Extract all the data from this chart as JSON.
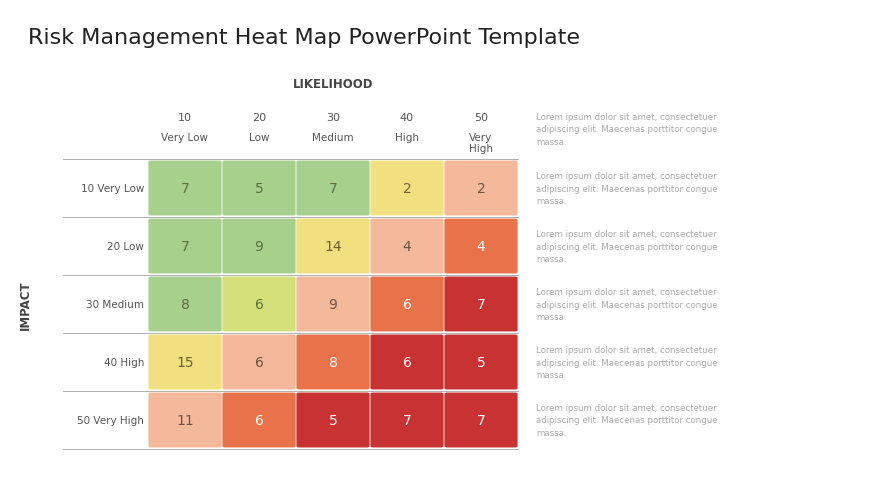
{
  "title": "Risk Management Heat Map PowerPoint Template",
  "title_fontsize": 16,
  "likelihood_label": "LIKELIHOOD",
  "impact_label": "IMPACT",
  "col_headers": [
    [
      "10",
      "Very Low"
    ],
    [
      "20",
      "Low"
    ],
    [
      "30",
      "Medium"
    ],
    [
      "40",
      "High"
    ],
    [
      "50",
      "Very\nHigh"
    ]
  ],
  "row_headers": [
    "10 Very Low",
    "20 Low",
    "30 Medium",
    "40 High",
    "50 Very High"
  ],
  "values": [
    [
      7,
      5,
      7,
      2,
      2
    ],
    [
      7,
      9,
      14,
      4,
      4
    ],
    [
      8,
      6,
      9,
      6,
      7
    ],
    [
      15,
      6,
      8,
      6,
      5
    ],
    [
      11,
      6,
      5,
      7,
      7
    ]
  ],
  "cell_colors": [
    [
      "#a8d08d",
      "#a8d08d",
      "#a8d08d",
      "#f0e080",
      "#f4b89a"
    ],
    [
      "#a8d08d",
      "#a8d08d",
      "#f0e080",
      "#f4b89a",
      "#e8734a"
    ],
    [
      "#a8d08d",
      "#d4e07a",
      "#f4b89a",
      "#e8734a",
      "#c83232"
    ],
    [
      "#f0e080",
      "#f4b89a",
      "#e8734a",
      "#c83232",
      "#c83232"
    ],
    [
      "#f4b89a",
      "#e8734a",
      "#c83232",
      "#c83232",
      "#c83232"
    ]
  ],
  "text_colors": [
    [
      "#5a7040",
      "#5a7040",
      "#5a7040",
      "#706030",
      "#705040"
    ],
    [
      "#5a7040",
      "#5a7040",
      "#706030",
      "#705040",
      "#ffffff"
    ],
    [
      "#5a7040",
      "#5a7040",
      "#705040",
      "#ffffff",
      "#ffffff"
    ],
    [
      "#706030",
      "#705040",
      "#ffffff",
      "#ffffff",
      "#ffffff"
    ],
    [
      "#705040",
      "#ffffff",
      "#ffffff",
      "#ffffff",
      "#ffffff"
    ]
  ],
  "side_text": "Lorem ipsum dolor sit amet, consectetuer\nadipiscing elit. Maecenas porttitor congue\nmassa.",
  "background_color": "#ffffff",
  "separator_line_color": "#b0b0b0"
}
